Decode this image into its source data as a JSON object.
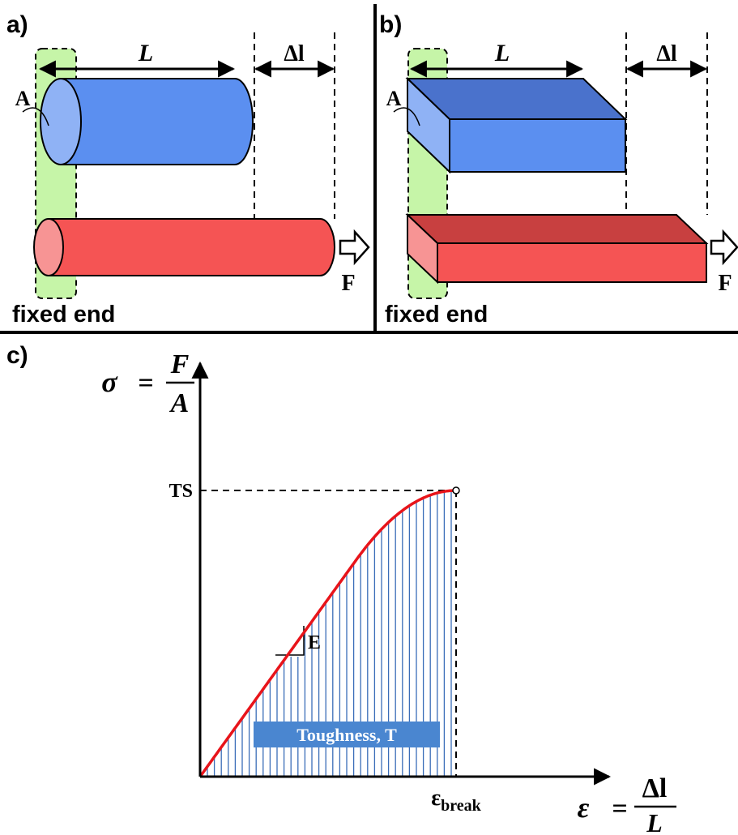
{
  "panels": [
    {
      "label": "a)",
      "length": "L",
      "elongation": "Δl",
      "area": "A",
      "force": "F",
      "fixed": "fixed end"
    },
    {
      "label": "b)",
      "length": "L",
      "elongation": "Δl",
      "area": "A",
      "force": "F",
      "fixed": "fixed end"
    },
    {
      "label": "c)",
      "y_axis": {
        "symbol": "σ",
        "equals": "=",
        "numerator": "F",
        "denominator": "A"
      },
      "x_axis": {
        "symbol": "ε",
        "equals": "=",
        "numerator": "Δl",
        "denominator": "L"
      },
      "strength": "TS",
      "modulus": "E",
      "toughness": "Toughness, T",
      "break": {
        "base": "ε",
        "sub": "break"
      }
    }
  ]
}
